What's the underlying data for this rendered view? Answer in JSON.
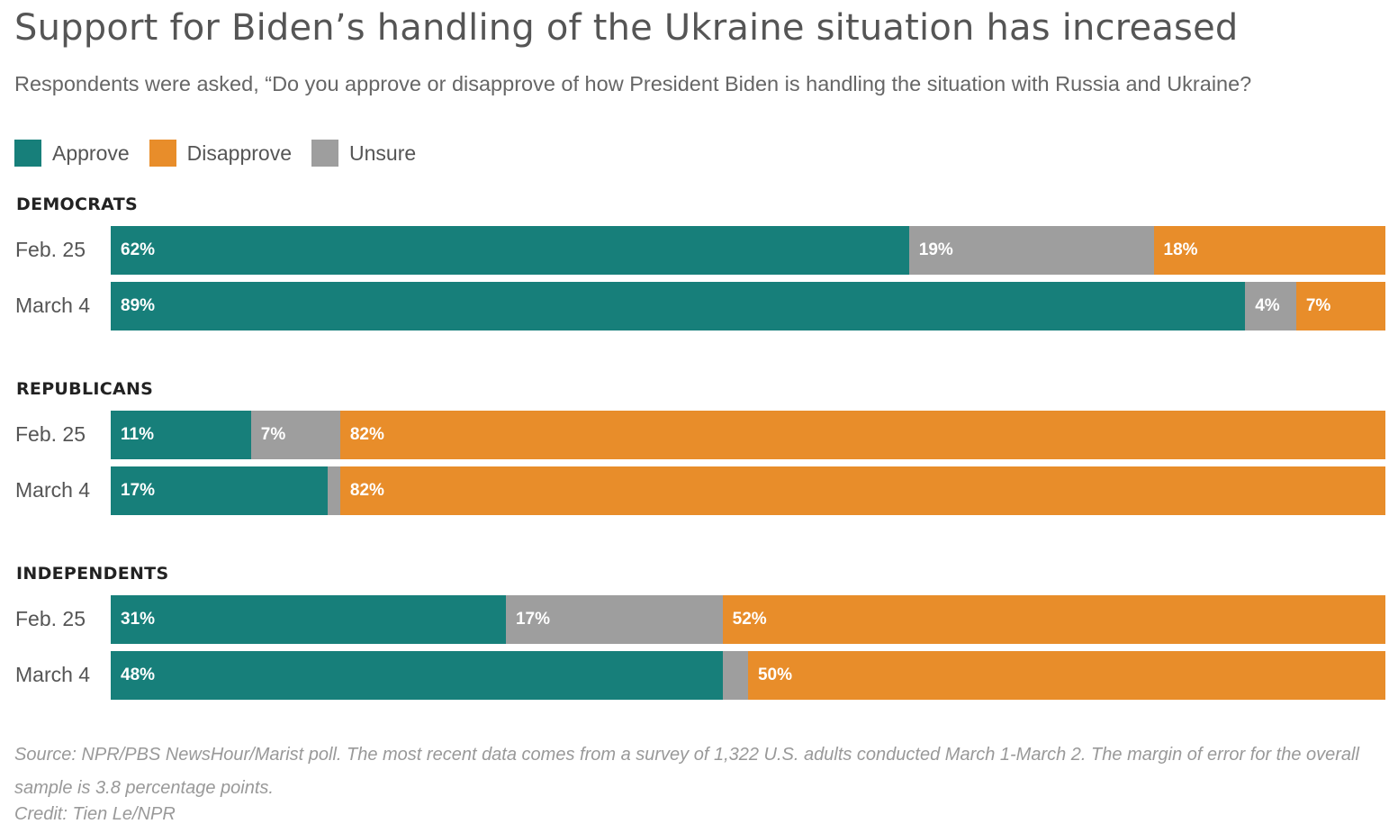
{
  "colors": {
    "approve": "#177f7a",
    "disapprove": "#e88d2a",
    "unsure": "#9e9e9e"
  },
  "title": "Support for Biden’s handling of the Ukraine situation has increased",
  "subtitle": "Respondents were asked, “Do you approve or disapprove of how President Biden is handling the situation with Russia and Ukraine?",
  "legend": [
    {
      "key": "approve",
      "label": "Approve"
    },
    {
      "key": "disapprove",
      "label": "Disapprove"
    },
    {
      "key": "unsure",
      "label": "Unsure"
    }
  ],
  "chart_data": {
    "type": "bar",
    "orientation": "horizontal",
    "stacked": true,
    "series_order": [
      "Approve",
      "Unsure",
      "Disapprove"
    ],
    "groups": [
      {
        "name": "DEMOCRATS",
        "rows": [
          {
            "label": "Feb. 25",
            "values": {
              "Approve": 62,
              "Unsure": 19,
              "Disapprove": 18
            },
            "labels": {
              "Approve": "62%",
              "Unsure": "19%",
              "Disapprove": "18%"
            }
          },
          {
            "label": "March 4",
            "values": {
              "Approve": 89,
              "Unsure": 4,
              "Disapprove": 7
            },
            "labels": {
              "Approve": "89%",
              "Unsure": "4%",
              "Disapprove": "7%"
            }
          }
        ]
      },
      {
        "name": "REPUBLICANS",
        "rows": [
          {
            "label": "Feb. 25",
            "values": {
              "Approve": 11,
              "Unsure": 7,
              "Disapprove": 82
            },
            "labels": {
              "Approve": "11%",
              "Unsure": "7%",
              "Disapprove": "82%"
            }
          },
          {
            "label": "March 4",
            "values": {
              "Approve": 17,
              "Unsure": 1,
              "Disapprove": 82
            },
            "labels": {
              "Approve": "17%",
              "Unsure": "",
              "Disapprove": "82%"
            }
          }
        ]
      },
      {
        "name": "INDEPENDENTS",
        "rows": [
          {
            "label": "Feb. 25",
            "values": {
              "Approve": 31,
              "Unsure": 17,
              "Disapprove": 52
            },
            "labels": {
              "Approve": "31%",
              "Unsure": "17%",
              "Disapprove": "52%"
            }
          },
          {
            "label": "March 4",
            "values": {
              "Approve": 48,
              "Unsure": 2,
              "Disapprove": 50
            },
            "labels": {
              "Approve": "48%",
              "Unsure": "",
              "Disapprove": "50%"
            }
          }
        ]
      }
    ]
  },
  "source": "Source: NPR/PBS NewsHour/Marist poll. The most recent data comes from a survey of 1,322 U.S. adults conducted March 1-March 2. The margin of error for the overall sample is 3.8 percentage points.",
  "credit": "Credit: Tien Le/NPR"
}
